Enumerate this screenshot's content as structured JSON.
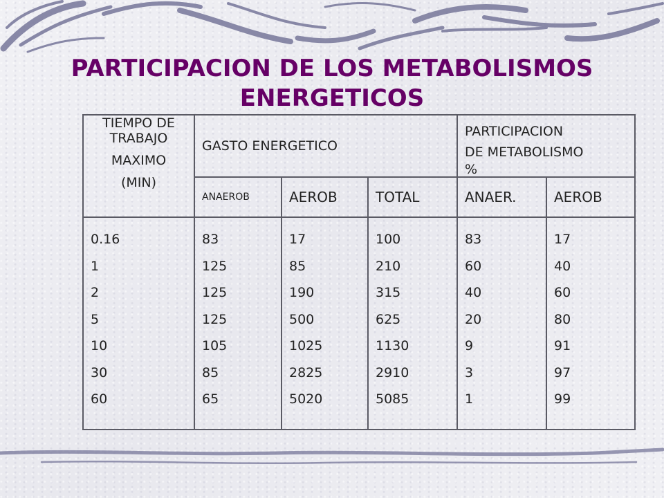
{
  "title": {
    "line1": "PARTICIPACION DE LOS METABOLISMOS",
    "line2": "ENERGETICOS"
  },
  "table": {
    "header_tiempo": [
      "TIEMPO DE",
      "TRABAJO",
      "MAXIMO",
      "(MIN)"
    ],
    "header_gasto": "GASTO ENERGETICO",
    "header_participacion": [
      "PARTICIPACION",
      "DE METABOLISMO",
      "%"
    ],
    "subheaders": [
      "ANAEROB",
      "AEROB",
      "TOTAL",
      "ANAER.",
      "AEROB"
    ],
    "columns": [
      [
        "0.16",
        "1",
        "2",
        "5",
        "10",
        "30",
        "60"
      ],
      [
        "83",
        "125",
        "125",
        "125",
        "105",
        "85",
        "65"
      ],
      [
        "17",
        "85",
        "190",
        "500",
        "1025",
        "2825",
        "5020"
      ],
      [
        "100",
        "210",
        "315",
        "625",
        "1130",
        "2910",
        "5085"
      ],
      [
        "83",
        "60",
        "40",
        "20",
        "9",
        "3",
        "1"
      ],
      [
        "17",
        "40",
        "60",
        "80",
        "91",
        "97",
        "99"
      ]
    ]
  },
  "colors": {
    "title": "#660066",
    "border": "#5a5a64",
    "decor": "#6e6e8c"
  }
}
